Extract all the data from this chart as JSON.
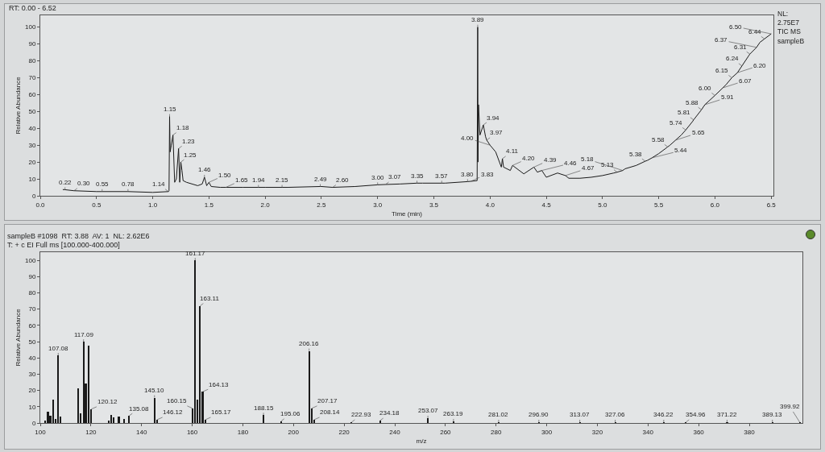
{
  "chart_data": [
    {
      "type": "line",
      "title": "RT: 0.00 - 6.52",
      "xlabel": "Time (min)",
      "ylabel": "Relative Abundance",
      "x": [
        0.2,
        0.22,
        0.3,
        0.5,
        0.55,
        0.78,
        1.0,
        1.14,
        1.145,
        1.15,
        1.155,
        1.165,
        1.18,
        1.195,
        1.21,
        1.23,
        1.24,
        1.25,
        1.26,
        1.27,
        1.3,
        1.4,
        1.44,
        1.46,
        1.48,
        1.5,
        1.52,
        1.6,
        1.65,
        1.8,
        1.94,
        2.0,
        2.15,
        2.2,
        2.49,
        2.5,
        2.6,
        2.8,
        3.0,
        3.07,
        3.2,
        3.35,
        3.4,
        3.57,
        3.6,
        3.8,
        3.83,
        3.885,
        3.89,
        3.893,
        3.897,
        3.91,
        3.94,
        3.96,
        3.97,
        4.0,
        4.05,
        4.1,
        4.11,
        4.12,
        4.18,
        4.2,
        4.3,
        4.39,
        4.42,
        4.46,
        4.5,
        4.6,
        4.67,
        4.7,
        4.8,
        4.9,
        5.0,
        5.1,
        5.13,
        5.18,
        5.2,
        5.3,
        5.38,
        5.4,
        5.44,
        5.5,
        5.58,
        5.6,
        5.65,
        5.7,
        5.74,
        5.8,
        5.81,
        5.88,
        5.9,
        5.91,
        6.0,
        6.07,
        6.1,
        6.15,
        6.2,
        6.24,
        6.3,
        6.31,
        6.37,
        6.4,
        6.44,
        6.5
      ],
      "series": [
        {
          "color": "#1a1a1a",
          "values": [
            3.7,
            3.6,
            3,
            2.5,
            2.5,
            2.5,
            2,
            2.5,
            3,
            47,
            26,
            30,
            36,
            8,
            10,
            28,
            8,
            20,
            15,
            9,
            8,
            6,
            7,
            11,
            6,
            8,
            5.5,
            5,
            5,
            5,
            5,
            5,
            5,
            5,
            5.5,
            5.5,
            5,
            5.5,
            6.5,
            6.7,
            7,
            7.5,
            7.5,
            7.5,
            7.5,
            8.4,
            8.6,
            9,
            100,
            20,
            54,
            36,
            42,
            35,
            33,
            30,
            26,
            17,
            22,
            17,
            15,
            18,
            13,
            17,
            14,
            15,
            11,
            13.5,
            12,
            10.4,
            10.4,
            11,
            12,
            13.5,
            14,
            15,
            16,
            18,
            20.5,
            21,
            22.5,
            25,
            29,
            30,
            33,
            36,
            39,
            44,
            45,
            51,
            53,
            54,
            59.5,
            64,
            66,
            70,
            73,
            77,
            83,
            84,
            88,
            91,
            93,
            96
          ]
        }
      ],
      "xlim": [
        0,
        6.52
      ],
      "ylim": [
        0,
        107
      ],
      "xticks": [
        {
          "value": 0,
          "label": "0.0"
        },
        {
          "value": 0.5,
          "label": "0.5"
        },
        {
          "value": 1,
          "label": "1.0"
        },
        {
          "value": 1.5,
          "label": "1.5"
        },
        {
          "value": 2,
          "label": "2.0"
        },
        {
          "value": 2.5,
          "label": "2.5"
        },
        {
          "value": 3,
          "label": "3.0"
        },
        {
          "value": 3.5,
          "label": "3.5"
        },
        {
          "value": 4,
          "label": "4.0"
        },
        {
          "value": 4.5,
          "label": "4.5"
        },
        {
          "value": 5,
          "label": "5.0"
        },
        {
          "value": 5.5,
          "label": "5.5"
        },
        {
          "value": 6,
          "label": "6.0"
        },
        {
          "value": 6.5,
          "label": "6.5"
        }
      ],
      "yticks": [
        0,
        10,
        20,
        30,
        40,
        50,
        60,
        70,
        80,
        90,
        100
      ],
      "grid": false,
      "annotations": [
        "NL:",
        "2.75E7",
        "TIC MS",
        "sampleB",
        {
          "text": "0.22",
          "x": 0.22,
          "y": 3.6
        },
        {
          "text": "0.30",
          "x": 0.3,
          "y": 3
        },
        {
          "text": "0.55",
          "x": 0.55,
          "y": 2.5
        },
        {
          "text": "0.78",
          "x": 0.78,
          "y": 2.5
        },
        {
          "text": "1.14",
          "x": 1.14,
          "y": 2.5
        },
        {
          "text": "1.15",
          "x": 1.15,
          "y": 47
        },
        {
          "text": "1.18",
          "x": 1.18,
          "y": 36
        },
        {
          "text": "1.23",
          "x": 1.23,
          "y": 28
        },
        {
          "text": "1.25",
          "x": 1.25,
          "y": 20
        },
        {
          "text": "1.46",
          "x": 1.46,
          "y": 11
        },
        {
          "text": "1.50",
          "x": 1.5,
          "y": 8
        },
        {
          "text": "1.65",
          "x": 1.65,
          "y": 5
        },
        {
          "text": "1.94",
          "x": 1.94,
          "y": 5
        },
        {
          "text": "2.15",
          "x": 2.15,
          "y": 5
        },
        {
          "text": "2.49",
          "x": 2.49,
          "y": 5.5
        },
        {
          "text": "2.60",
          "x": 2.6,
          "y": 5
        },
        {
          "text": "3.00",
          "x": 3.0,
          "y": 6.5
        },
        {
          "text": "3.07",
          "x": 3.07,
          "y": 6.7
        },
        {
          "text": "3.35",
          "x": 3.35,
          "y": 7.5
        },
        {
          "text": "3.57",
          "x": 3.57,
          "y": 7.5
        },
        {
          "text": "3.80",
          "x": 3.8,
          "y": 8.4
        },
        {
          "text": "3.83",
          "x": 3.83,
          "y": 8.6
        },
        {
          "text": "3.89",
          "x": 3.89,
          "y": 100
        },
        {
          "text": "3.94",
          "x": 3.94,
          "y": 42
        },
        {
          "text": "3.97",
          "x": 3.97,
          "y": 33
        },
        {
          "text": "4.00",
          "x": 4.0,
          "y": 30
        },
        {
          "text": "4.11",
          "x": 4.11,
          "y": 22
        },
        {
          "text": "4.20",
          "x": 4.2,
          "y": 18
        },
        {
          "text": "4.39",
          "x": 4.39,
          "y": 17
        },
        {
          "text": "4.46",
          "x": 4.46,
          "y": 15
        },
        {
          "text": "4.67",
          "x": 4.67,
          "y": 12
        },
        {
          "text": "5.13",
          "x": 5.13,
          "y": 14
        },
        {
          "text": "5.18",
          "x": 5.18,
          "y": 15
        },
        {
          "text": "5.38",
          "x": 5.38,
          "y": 20.5
        },
        {
          "text": "5.44",
          "x": 5.44,
          "y": 22.5
        },
        {
          "text": "5.58",
          "x": 5.58,
          "y": 29
        },
        {
          "text": "5.65",
          "x": 5.65,
          "y": 33
        },
        {
          "text": "5.74",
          "x": 5.74,
          "y": 39
        },
        {
          "text": "5.81",
          "x": 5.81,
          "y": 45
        },
        {
          "text": "5.88",
          "x": 5.88,
          "y": 51
        },
        {
          "text": "5.91",
          "x": 5.91,
          "y": 54
        },
        {
          "text": "6.00",
          "x": 6.0,
          "y": 59.5
        },
        {
          "text": "6.07",
          "x": 6.07,
          "y": 64
        },
        {
          "text": "6.15",
          "x": 6.15,
          "y": 70
        },
        {
          "text": "6.20",
          "x": 6.2,
          "y": 73
        },
        {
          "text": "6.24",
          "x": 6.24,
          "y": 77
        },
        {
          "text": "6.31",
          "x": 6.31,
          "y": 84
        },
        {
          "text": "6.37",
          "x": 6.37,
          "y": 88
        },
        {
          "text": "6.44",
          "x": 6.44,
          "y": 93
        },
        {
          "text": "6.50",
          "x": 6.5,
          "y": 96
        }
      ]
    },
    {
      "type": "bar",
      "title": "sampleB #1098  RT: 3.88  AV: 1  NL: 2.62E6",
      "subtitle": "T: + c EI Full ms [100.000-400.000]",
      "xlabel": "m/z",
      "ylabel": "Relative Abundance",
      "x": [
        102,
        103,
        104,
        105,
        106,
        107.08,
        108,
        115,
        116,
        117.09,
        118,
        119,
        120.12,
        127,
        128,
        129,
        131,
        133,
        135.08,
        145.1,
        146.12,
        160.15,
        161.17,
        162,
        163.11,
        164.13,
        165.17,
        188.15,
        195.06,
        206.16,
        207.17,
        208.14,
        222.93,
        234.18,
        253.07,
        263.19,
        281.02,
        296.9,
        313.07,
        327.06,
        346.22,
        354.96,
        371.22,
        389.13,
        399.92
      ],
      "series": [
        {
          "color": "#1a1a1a",
          "values": [
            1.6,
            7,
            4.4,
            14.3,
            2.5,
            41.6,
            4,
            21.3,
            6,
            50,
            24.4,
            47.5,
            8.5,
            1.6,
            5,
            3.6,
            4,
            2.3,
            4.4,
            15.6,
            2,
            9,
            100,
            14.3,
            72,
            19.2,
            2,
            4.8,
            1.1,
            44.3,
            9,
            2,
            0.5,
            1.5,
            3,
            1,
            0.5,
            0.5,
            0.5,
            0.5,
            0.5,
            0.5,
            0.5,
            0.5,
            0.5
          ]
        }
      ],
      "xlim": [
        100,
        401
      ],
      "ylim": [
        0,
        105
      ],
      "xticks": [
        100,
        120,
        140,
        160,
        180,
        200,
        220,
        240,
        260,
        280,
        300,
        320,
        340,
        360,
        380
      ],
      "yticks": [
        0,
        10,
        20,
        30,
        40,
        50,
        60,
        70,
        80,
        90,
        100
      ],
      "grid": false,
      "annotations": [
        {
          "text": "107.08",
          "x": 107.08,
          "y": 41.6
        },
        {
          "text": "117.09",
          "x": 117.09,
          "y": 50
        },
        {
          "text": "120.12",
          "x": 120.12,
          "y": 8.5
        },
        {
          "text": "135.08",
          "x": 135.08,
          "y": 4.4
        },
        {
          "text": "145.10",
          "x": 145.1,
          "y": 15.6
        },
        {
          "text": "146.12",
          "x": 146.12,
          "y": 2
        },
        {
          "text": "160.15",
          "x": 160.15,
          "y": 9
        },
        {
          "text": "161.17",
          "x": 161.17,
          "y": 100
        },
        {
          "text": "163.11",
          "x": 163.11,
          "y": 72
        },
        {
          "text": "164.13",
          "x": 164.13,
          "y": 19.2
        },
        {
          "text": "165.17",
          "x": 165.17,
          "y": 2
        },
        {
          "text": "188.15",
          "x": 188.15,
          "y": 4.8
        },
        {
          "text": "195.06",
          "x": 195.06,
          "y": 1.1
        },
        {
          "text": "206.16",
          "x": 206.16,
          "y": 44.3
        },
        {
          "text": "207.17",
          "x": 207.17,
          "y": 9
        },
        {
          "text": "208.14",
          "x": 208.14,
          "y": 2
        },
        {
          "text": "222.93",
          "x": 222.93,
          "y": 0.5
        },
        {
          "text": "234.18",
          "x": 234.18,
          "y": 1.5
        },
        {
          "text": "253.07",
          "x": 253.07,
          "y": 3
        },
        {
          "text": "263.19",
          "x": 263.19,
          "y": 1
        },
        {
          "text": "281.02",
          "x": 281.02,
          "y": 0.5
        },
        {
          "text": "296.90",
          "x": 296.9,
          "y": 0.5
        },
        {
          "text": "313.07",
          "x": 313.07,
          "y": 0.5
        },
        {
          "text": "327.06",
          "x": 327.06,
          "y": 0.5
        },
        {
          "text": "346.22",
          "x": 346.22,
          "y": 0.5
        },
        {
          "text": "354.96",
          "x": 354.96,
          "y": 0.5
        },
        {
          "text": "371.22",
          "x": 371.22,
          "y": 0.5
        },
        {
          "text": "389.13",
          "x": 389.13,
          "y": 0.5
        },
        {
          "text": "399.92",
          "x": 399.92,
          "y": 0.5
        }
      ]
    }
  ]
}
